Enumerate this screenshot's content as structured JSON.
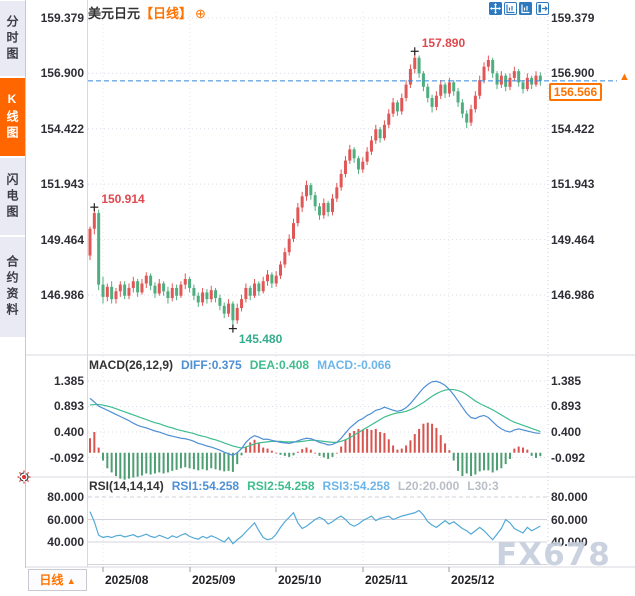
{
  "app": {
    "watermark": "FX678"
  },
  "title": {
    "symbol": "美元日元",
    "period": "【日线】",
    "add_icon": "⊕"
  },
  "sidebar": {
    "tabs": [
      {
        "label": "分时图",
        "active": false
      },
      {
        "label": "K线图",
        "active": true
      },
      {
        "label": "闪电图",
        "active": false
      },
      {
        "label": "合约资料",
        "active": false
      }
    ]
  },
  "toolbar": {
    "icons": [
      "crosshair-move",
      "fit-axis",
      "axis-scale-active",
      "pop-out"
    ]
  },
  "current_price": {
    "value": "156.566",
    "arrow": "▲",
    "color": "#ff7300"
  },
  "bottom_bar": {
    "period_label": "日线",
    "period_arrow": "▲"
  },
  "macd_header": {
    "name": "MACD(26,12,9)",
    "diff": "DIFF:0.375",
    "dea": "DEA:0.408",
    "macd": "MACD:-0.066"
  },
  "rsi_header": {
    "name": "RSI(14,14,14)",
    "rsi1": "RSI1:54.258",
    "rsi2": "RSI2:54.258",
    "rsi3": "RSI3:54.258",
    "l20": "L20:20.000",
    "l30": "L30:3"
  },
  "chart_data": [
    {
      "type": "candlestick",
      "title": "美元日元 日线 (USD/JPY daily)",
      "y_axis_labels": [
        "159.379",
        "156.900",
        "154.422",
        "151.943",
        "149.464",
        "146.986"
      ],
      "x_axis_labels": [
        "2025/08",
        "2025/09",
        "2025/10",
        "2025/11",
        "2025/12"
      ],
      "ylim": [
        145.0,
        159.379
      ],
      "current_price": 156.566,
      "colors": {
        "up": "#e15656",
        "down": "#4fae7f",
        "current_line": "#3388dd"
      },
      "annotations": [
        {
          "index": 1,
          "price": 150.914,
          "label": "150.914",
          "placement": "above",
          "color": "#e0484e"
        },
        {
          "index": 75,
          "price": 157.89,
          "label": "157.890",
          "placement": "above",
          "color": "#e0484e"
        },
        {
          "index": 33,
          "price": 145.48,
          "label": "145.480",
          "placement": "below",
          "color": "#35ad8c"
        }
      ],
      "candles": [
        [
          148.75,
          150.05,
          148.55,
          149.95
        ],
        [
          149.95,
          150.914,
          149.7,
          150.65
        ],
        [
          150.65,
          150.8,
          147.2,
          147.45
        ],
        [
          147.45,
          147.8,
          146.6,
          146.9
        ],
        [
          146.9,
          147.5,
          146.7,
          147.35
        ],
        [
          147.35,
          147.6,
          146.6,
          146.8
        ],
        [
          146.8,
          147.3,
          146.6,
          147.15
        ],
        [
          147.15,
          147.6,
          146.9,
          147.45
        ],
        [
          147.45,
          147.6,
          146.8,
          146.95
        ],
        [
          146.95,
          147.5,
          146.8,
          147.3
        ],
        [
          147.3,
          147.8,
          147.1,
          147.6
        ],
        [
          147.6,
          147.7,
          146.9,
          147.1
        ],
        [
          147.1,
          147.7,
          147.0,
          147.5
        ],
        [
          147.5,
          148.0,
          147.3,
          147.85
        ],
        [
          147.85,
          147.95,
          147.2,
          147.4
        ],
        [
          147.4,
          147.55,
          146.85,
          147.05
        ],
        [
          147.05,
          147.7,
          146.95,
          147.5
        ],
        [
          147.5,
          147.6,
          146.95,
          147.15
        ],
        [
          147.15,
          147.35,
          146.6,
          146.85
        ],
        [
          146.85,
          147.5,
          146.7,
          147.3
        ],
        [
          147.3,
          147.45,
          146.75,
          146.95
        ],
        [
          146.95,
          147.6,
          146.85,
          147.45
        ],
        [
          147.45,
          147.95,
          147.25,
          147.7
        ],
        [
          147.7,
          147.8,
          147.1,
          147.3
        ],
        [
          147.3,
          147.45,
          146.75,
          146.95
        ],
        [
          146.95,
          147.1,
          146.45,
          146.65
        ],
        [
          146.65,
          147.3,
          146.5,
          147.1
        ],
        [
          147.1,
          147.25,
          146.6,
          146.8
        ],
        [
          146.8,
          147.4,
          146.65,
          147.2
        ],
        [
          147.2,
          147.3,
          146.65,
          146.85
        ],
        [
          146.85,
          147.0,
          146.3,
          146.5
        ],
        [
          146.5,
          146.65,
          145.95,
          146.15
        ],
        [
          146.15,
          146.8,
          146.0,
          146.6
        ],
        [
          146.6,
          146.7,
          145.48,
          145.85
        ],
        [
          145.85,
          146.6,
          145.7,
          146.4
        ],
        [
          146.4,
          147.0,
          146.25,
          146.8
        ],
        [
          146.8,
          147.5,
          146.65,
          147.3
        ],
        [
          147.3,
          147.4,
          146.75,
          146.95
        ],
        [
          146.95,
          147.7,
          146.85,
          147.5
        ],
        [
          147.5,
          147.6,
          146.95,
          147.15
        ],
        [
          147.15,
          147.8,
          147.05,
          147.6
        ],
        [
          147.6,
          148.1,
          147.4,
          147.9
        ],
        [
          147.9,
          148.0,
          147.3,
          147.5
        ],
        [
          147.5,
          148.05,
          147.35,
          147.85
        ],
        [
          147.85,
          148.5,
          147.7,
          148.35
        ],
        [
          148.35,
          149.1,
          148.2,
          148.9
        ],
        [
          148.9,
          149.7,
          148.75,
          149.5
        ],
        [
          149.5,
          150.4,
          149.35,
          150.2
        ],
        [
          150.2,
          151.1,
          150.05,
          150.9
        ],
        [
          150.9,
          151.6,
          150.7,
          151.4
        ],
        [
          151.4,
          152.1,
          151.2,
          151.9
        ],
        [
          151.9,
          152.0,
          151.25,
          151.45
        ],
        [
          151.45,
          151.6,
          150.75,
          150.95
        ],
        [
          150.95,
          151.1,
          150.35,
          150.55
        ],
        [
          150.55,
          151.3,
          150.4,
          151.1
        ],
        [
          151.1,
          151.2,
          150.5,
          150.7
        ],
        [
          150.7,
          151.5,
          150.55,
          151.3
        ],
        [
          151.3,
          152.0,
          151.15,
          151.8
        ],
        [
          151.8,
          152.6,
          151.65,
          152.4
        ],
        [
          152.4,
          153.2,
          152.25,
          153.0
        ],
        [
          153.0,
          153.7,
          152.85,
          153.5
        ],
        [
          153.5,
          153.6,
          152.9,
          153.1
        ],
        [
          153.1,
          153.2,
          152.4,
          152.6
        ],
        [
          152.6,
          153.15,
          152.45,
          152.95
        ],
        [
          152.95,
          153.6,
          152.8,
          153.4
        ],
        [
          153.4,
          154.1,
          153.25,
          153.9
        ],
        [
          153.9,
          154.6,
          153.75,
          154.4
        ],
        [
          154.4,
          154.5,
          153.8,
          154.0
        ],
        [
          154.0,
          154.8,
          153.9,
          154.6
        ],
        [
          154.6,
          155.3,
          154.45,
          155.1
        ],
        [
          155.1,
          155.8,
          154.95,
          155.6
        ],
        [
          155.6,
          155.7,
          155.0,
          155.2
        ],
        [
          155.2,
          156.0,
          155.05,
          155.8
        ],
        [
          155.8,
          156.6,
          155.65,
          156.4
        ],
        [
          156.4,
          157.3,
          156.25,
          157.1
        ],
        [
          157.1,
          157.89,
          156.9,
          157.6
        ],
        [
          157.6,
          157.7,
          156.7,
          156.9
        ],
        [
          156.9,
          157.0,
          156.1,
          156.3
        ],
        [
          156.3,
          156.45,
          155.6,
          155.8
        ],
        [
          155.8,
          155.95,
          155.15,
          155.4
        ],
        [
          155.4,
          156.1,
          155.25,
          155.9
        ],
        [
          155.9,
          156.6,
          155.75,
          156.4
        ],
        [
          156.4,
          156.5,
          155.8,
          156.0
        ],
        [
          156.0,
          156.7,
          155.85,
          156.5
        ],
        [
          156.5,
          156.6,
          155.9,
          156.1
        ],
        [
          156.1,
          156.25,
          155.4,
          155.6
        ],
        [
          155.6,
          155.75,
          154.9,
          155.1
        ],
        [
          155.1,
          155.25,
          154.45,
          154.7
        ],
        [
          154.7,
          155.5,
          154.55,
          155.3
        ],
        [
          155.3,
          156.1,
          155.15,
          155.9
        ],
        [
          155.9,
          156.8,
          155.75,
          156.6
        ],
        [
          156.6,
          157.4,
          156.45,
          157.2
        ],
        [
          157.2,
          157.7,
          157.0,
          157.5
        ],
        [
          157.5,
          157.6,
          156.7,
          156.9
        ],
        [
          156.9,
          157.0,
          156.2,
          156.4
        ],
        [
          156.4,
          157.0,
          156.25,
          156.8
        ],
        [
          156.8,
          156.9,
          156.1,
          156.3
        ],
        [
          156.3,
          156.9,
          156.15,
          156.7
        ],
        [
          156.7,
          157.2,
          156.55,
          157.0
        ],
        [
          157.0,
          157.1,
          156.3,
          156.5
        ],
        [
          156.5,
          156.6,
          156.0,
          156.2
        ],
        [
          156.2,
          156.9,
          156.1,
          156.7
        ],
        [
          156.7,
          156.8,
          156.2,
          156.4
        ],
        [
          156.4,
          157.0,
          156.3,
          156.8
        ],
        [
          156.8,
          156.95,
          156.35,
          156.566
        ]
      ]
    },
    {
      "type": "macd",
      "y_axis_labels": [
        "1.385",
        "0.893",
        "0.400",
        "-0.092"
      ],
      "values": {
        "diff": 0.375,
        "dea": 0.408,
        "macd": -0.066
      },
      "colors": {
        "diff": "#4f8fd4",
        "dea": "#3fbd8e",
        "hist_up": "#d9544f",
        "hist_down": "#4d9e72"
      },
      "diff": [
        1.05,
        0.98,
        0.9,
        0.86,
        0.82,
        0.78,
        0.74,
        0.7,
        0.66,
        0.62,
        0.57,
        0.53,
        0.5,
        0.48,
        0.45,
        0.42,
        0.4,
        0.37,
        0.34,
        0.32,
        0.3,
        0.28,
        0.27,
        0.25,
        0.22,
        0.18,
        0.16,
        0.13,
        0.11,
        0.08,
        0.05,
        0.01,
        -0.02,
        -0.05,
        0.0,
        0.08,
        0.2,
        0.28,
        0.33,
        0.3,
        0.26,
        0.26,
        0.24,
        0.22,
        0.2,
        0.19,
        0.18,
        0.2,
        0.23,
        0.26,
        0.28,
        0.27,
        0.24,
        0.2,
        0.18,
        0.15,
        0.16,
        0.2,
        0.28,
        0.38,
        0.48,
        0.55,
        0.62,
        0.66,
        0.72,
        0.76,
        0.82,
        0.84,
        0.88,
        0.85,
        0.82,
        0.8,
        0.82,
        0.87,
        0.95,
        1.05,
        1.15,
        1.25,
        1.32,
        1.37,
        1.38,
        1.35,
        1.3,
        1.22,
        1.12,
        1.0,
        0.88,
        0.76,
        0.68,
        0.66,
        0.7,
        0.72,
        0.68,
        0.6,
        0.52,
        0.46,
        0.42,
        0.4,
        0.44,
        0.46,
        0.44,
        0.42,
        0.4,
        0.38,
        0.375
      ],
      "dea": [
        0.92,
        0.93,
        0.93,
        0.92,
        0.9,
        0.88,
        0.85,
        0.82,
        0.79,
        0.76,
        0.73,
        0.7,
        0.67,
        0.64,
        0.61,
        0.58,
        0.56,
        0.53,
        0.5,
        0.48,
        0.45,
        0.43,
        0.41,
        0.39,
        0.37,
        0.34,
        0.32,
        0.3,
        0.27,
        0.25,
        0.22,
        0.19,
        0.16,
        0.13,
        0.11,
        0.09,
        0.11,
        0.14,
        0.17,
        0.19,
        0.2,
        0.21,
        0.22,
        0.22,
        0.22,
        0.21,
        0.21,
        0.21,
        0.21,
        0.22,
        0.23,
        0.24,
        0.24,
        0.23,
        0.22,
        0.21,
        0.2,
        0.2,
        0.22,
        0.25,
        0.29,
        0.34,
        0.39,
        0.44,
        0.49,
        0.54,
        0.59,
        0.64,
        0.69,
        0.72,
        0.75,
        0.77,
        0.78,
        0.8,
        0.83,
        0.87,
        0.92,
        0.97,
        1.03,
        1.09,
        1.14,
        1.18,
        1.21,
        1.22,
        1.22,
        1.2,
        1.17,
        1.12,
        1.06,
        1.0,
        0.95,
        0.91,
        0.87,
        0.83,
        0.78,
        0.73,
        0.68,
        0.63,
        0.59,
        0.56,
        0.53,
        0.5,
        0.47,
        0.44,
        0.408
      ],
      "hist": [
        0.28,
        0.4,
        0.1,
        -0.15,
        -0.3,
        -0.38,
        -0.45,
        -0.5,
        -0.52,
        -0.5,
        -0.48,
        -0.46,
        -0.44,
        -0.4,
        -0.42,
        -0.4,
        -0.38,
        -0.4,
        -0.38,
        -0.35,
        -0.33,
        -0.3,
        -0.28,
        -0.3,
        -0.32,
        -0.34,
        -0.32,
        -0.34,
        -0.3,
        -0.32,
        -0.34,
        -0.36,
        -0.35,
        -0.37,
        -0.22,
        -0.05,
        0.12,
        0.2,
        0.25,
        0.18,
        0.1,
        0.08,
        0.04,
        0.0,
        -0.04,
        -0.06,
        -0.08,
        -0.05,
        0.02,
        0.07,
        0.1,
        0.06,
        0.0,
        -0.06,
        -0.09,
        -0.12,
        -0.08,
        0.0,
        0.12,
        0.26,
        0.38,
        0.42,
        0.46,
        0.44,
        0.46,
        0.44,
        0.46,
        0.4,
        0.38,
        0.26,
        0.14,
        0.06,
        0.08,
        0.14,
        0.24,
        0.36,
        0.46,
        0.56,
        0.58,
        0.56,
        0.48,
        0.34,
        0.18,
        0.05,
        -0.15,
        -0.35,
        -0.45,
        -0.4,
        -0.45,
        -0.42,
        -0.36,
        -0.34,
        -0.34,
        -0.38,
        -0.34,
        -0.3,
        -0.22,
        -0.12,
        0.08,
        0.12,
        0.1,
        0.06,
        -0.06,
        -0.1,
        -0.066
      ]
    },
    {
      "type": "rsi",
      "y_axis_labels": [
        "80.000",
        "60.000",
        "40.000"
      ],
      "value": 54.258,
      "colors": {
        "line": "#54a9d6"
      },
      "rsi": [
        67,
        58,
        46,
        44,
        45,
        44,
        45.5,
        46,
        44.5,
        45.5,
        46.5,
        44.5,
        45.5,
        47,
        45,
        44,
        46,
        44.5,
        43,
        45.5,
        44,
        46,
        47.5,
        45,
        43.5,
        42.5,
        45,
        43.5,
        45.5,
        44,
        42,
        40,
        44,
        38.5,
        42,
        45,
        49,
        53,
        57,
        50,
        44,
        42,
        43,
        47,
        53,
        58,
        62,
        66,
        57,
        52,
        54,
        57,
        60,
        62,
        60,
        56,
        58,
        61,
        63,
        60,
        56,
        54,
        56,
        59,
        61,
        63,
        59,
        61,
        62,
        63,
        60,
        61.5,
        63,
        64,
        65,
        66,
        68,
        64,
        58,
        55,
        53,
        56,
        59,
        56,
        58,
        55,
        52,
        50,
        47,
        50,
        53,
        50,
        46,
        42,
        47,
        52,
        60,
        57,
        52,
        50,
        48,
        53,
        50,
        52,
        54.258
      ]
    }
  ]
}
